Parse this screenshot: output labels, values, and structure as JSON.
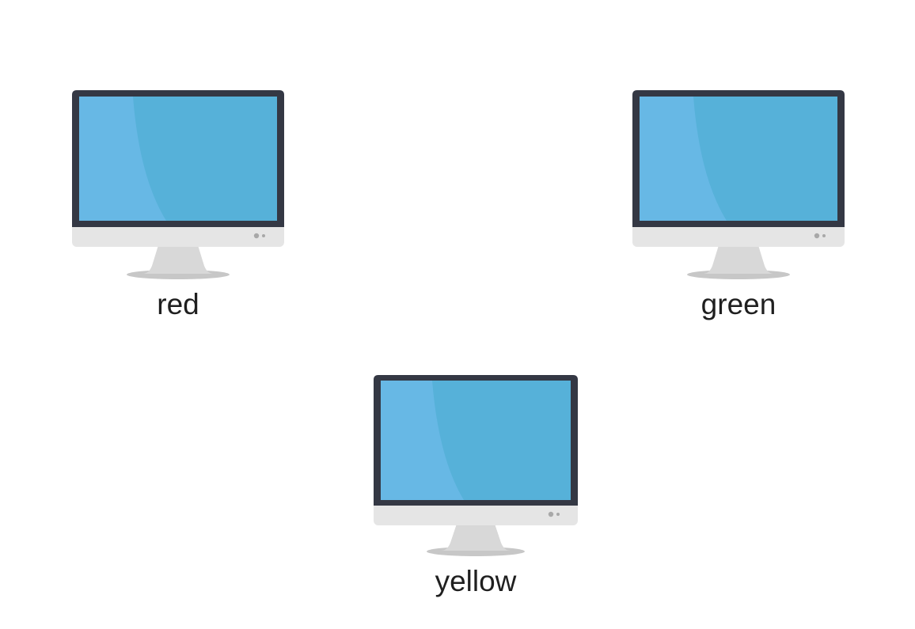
{
  "nodes": [
    {
      "id": "red",
      "label": "red",
      "icon": "monitor-icon"
    },
    {
      "id": "green",
      "label": "green",
      "icon": "monitor-icon"
    },
    {
      "id": "yellow",
      "label": "yellow",
      "icon": "monitor-icon"
    }
  ],
  "colors": {
    "bezel": "#343844",
    "screen": "#56b1d9",
    "screen_highlight": "#67b8e5",
    "chin": "#e5e5e5",
    "stand": "#d8d8d8",
    "shadow": "#c7c7c7",
    "indicator": "#a8a8a8",
    "label": "#1f1f1f"
  }
}
